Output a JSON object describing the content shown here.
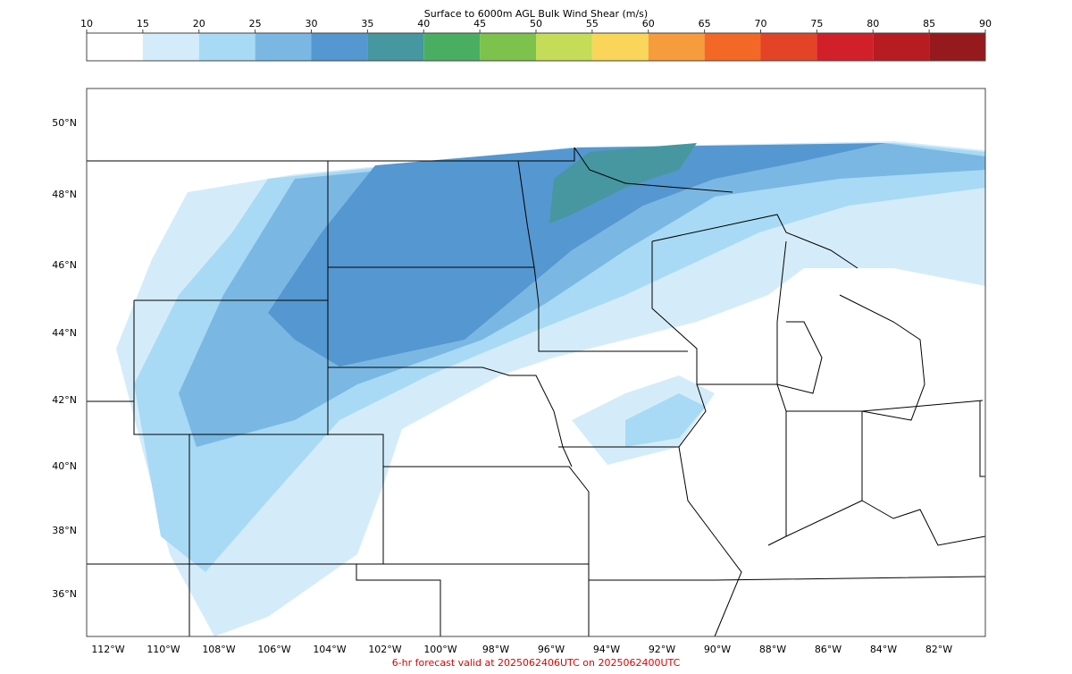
{
  "colorbar": {
    "title": "Surface to 6000m AGL Bulk Wind Shear (m/s)",
    "ticks": [
      10,
      15,
      20,
      25,
      30,
      35,
      40,
      45,
      50,
      55,
      60,
      65,
      70,
      75,
      80,
      85,
      90
    ],
    "colors": [
      "#ffffff",
      "#d4ecfa",
      "#a8daf5",
      "#7ab8e3",
      "#5597d0",
      "#4697a0",
      "#4aae62",
      "#7cc24c",
      "#c4dc58",
      "#f9d65a",
      "#f79c3c",
      "#f36827",
      "#e34428",
      "#d1202a",
      "#b71c22",
      "#961a1d"
    ]
  },
  "lat_labels": [
    "50°N",
    "48°N",
    "46°N",
    "44°N",
    "42°N",
    "40°N",
    "38°N",
    "36°N"
  ],
  "lon_labels": [
    "112°W",
    "110°W",
    "108°W",
    "106°W",
    "104°W",
    "102°W",
    "100°W",
    "98°W",
    "96°W",
    "94°W",
    "92°W",
    "90°W",
    "88°W",
    "86°W",
    "84°W",
    "82°W"
  ],
  "footer": "6-hr forecast valid at 2025062406UTC on 2025062400UTC"
}
